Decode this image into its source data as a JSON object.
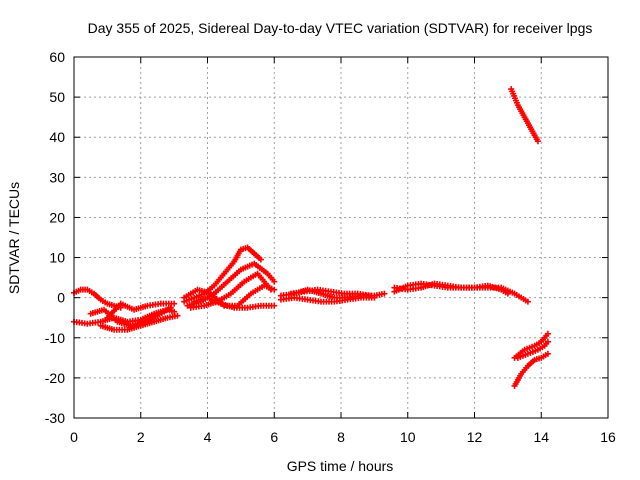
{
  "chart_data": {
    "type": "scatter",
    "title": "Day 355 of 2025, Sidereal Day-to-day VTEC variation (SDTVAR) for receiver lpgs",
    "xlabel": "GPS time / hours",
    "ylabel": "SDTVAR / TECUs",
    "xlim": [
      0,
      16
    ],
    "ylim": [
      -30,
      60
    ],
    "xticks": [
      "0",
      "2",
      "4",
      "6",
      "8",
      "10",
      "12",
      "14",
      "16"
    ],
    "yticks": [
      "-30",
      "-20",
      "-10",
      "0",
      "10",
      "20",
      "30",
      "40",
      "50",
      "60"
    ],
    "grid": true,
    "legend": "none",
    "color": "#ff0000",
    "marker": "plus",
    "series": [
      {
        "x": [
          0.0,
          0.2,
          0.4,
          0.6,
          0.8,
          1.0,
          1.2,
          1.4
        ],
        "y": [
          1.2,
          2.0,
          2.0,
          1.0,
          -0.5,
          -1.5,
          -2.0,
          -2.5
        ]
      },
      {
        "x": [
          0.0,
          0.4,
          0.8,
          1.2,
          1.6,
          2.0,
          2.4,
          2.8,
          3.0
        ],
        "y": [
          -6.0,
          -6.5,
          -6.0,
          -5.0,
          -6.0,
          -5.5,
          -4.0,
          -3.0,
          -3.5
        ]
      },
      {
        "x": [
          0.5,
          0.9,
          1.3,
          1.7,
          2.1,
          2.5,
          2.9
        ],
        "y": [
          -4.0,
          -3.0,
          -6.0,
          -7.0,
          -6.0,
          -4.5,
          -2.5
        ]
      },
      {
        "x": [
          0.8,
          1.2,
          1.6,
          2.0,
          2.4,
          2.8,
          3.1
        ],
        "y": [
          -7.0,
          -8.0,
          -8.0,
          -7.0,
          -6.0,
          -5.0,
          -4.5
        ]
      },
      {
        "x": [
          1.0,
          1.4,
          1.8,
          2.2,
          2.6,
          3.0
        ],
        "y": [
          -5.0,
          -1.5,
          -3.0,
          -2.0,
          -1.5,
          -1.5
        ]
      },
      {
        "x": [
          3.3,
          3.6,
          3.9,
          4.2,
          4.5,
          4.8,
          5.0,
          5.2,
          5.4,
          5.6
        ],
        "y": [
          -1.0,
          0.0,
          1.0,
          3.0,
          6.0,
          9.0,
          12.0,
          12.5,
          11.0,
          9.5
        ]
      },
      {
        "x": [
          3.4,
          3.8,
          4.2,
          4.6,
          5.0,
          5.4,
          5.8,
          6.0
        ],
        "y": [
          -2.0,
          -1.0,
          1.0,
          4.0,
          7.0,
          8.5,
          6.0,
          4.0
        ]
      },
      {
        "x": [
          3.5,
          3.9,
          4.3,
          4.7,
          5.1,
          5.5,
          5.9
        ],
        "y": [
          -2.5,
          -2.0,
          -1.0,
          1.0,
          4.0,
          6.0,
          2.0
        ]
      },
      {
        "x": [
          3.6,
          4.0,
          4.4,
          4.8,
          5.2,
          5.6,
          6.0
        ],
        "y": [
          -1.0,
          0.0,
          -1.5,
          -2.5,
          -2.5,
          -2.0,
          -2.0
        ]
      },
      {
        "x": [
          3.3,
          3.7,
          4.1,
          4.5,
          4.9,
          5.3,
          5.7,
          6.0
        ],
        "y": [
          0.0,
          2.0,
          1.0,
          -2.0,
          -2.0,
          1.0,
          3.0,
          2.0
        ]
      },
      {
        "x": [
          6.2,
          6.6,
          7.0,
          7.4,
          7.8,
          8.2,
          8.6,
          9.0,
          9.3
        ],
        "y": [
          0.5,
          1.0,
          2.0,
          1.0,
          0.0,
          0.0,
          0.5,
          0.5,
          1.0
        ]
      },
      {
        "x": [
          6.2,
          6.6,
          7.0,
          7.4,
          7.8,
          8.2,
          8.6,
          9.0
        ],
        "y": [
          -0.5,
          0.0,
          -0.5,
          -1.0,
          -1.0,
          -0.5,
          0.0,
          0.0
        ]
      },
      {
        "x": [
          6.5,
          6.9,
          7.3,
          7.7,
          8.1,
          8.5,
          8.9
        ],
        "y": [
          1.0,
          1.5,
          2.0,
          1.5,
          1.0,
          1.0,
          0.5
        ]
      },
      {
        "x": [
          9.6,
          10.0,
          10.4,
          10.8,
          11.2,
          11.6,
          12.0,
          12.4,
          12.8,
          13.2,
          13.6
        ],
        "y": [
          1.5,
          3.0,
          3.5,
          3.0,
          2.5,
          2.5,
          2.5,
          2.5,
          2.5,
          1.0,
          -1.0
        ]
      },
      {
        "x": [
          9.6,
          10.0,
          10.4,
          10.8,
          11.2,
          11.6,
          12.0,
          12.4,
          12.8,
          13.0
        ],
        "y": [
          2.5,
          2.0,
          2.5,
          3.5,
          3.0,
          2.5,
          2.5,
          3.0,
          2.0,
          1.0
        ]
      },
      {
        "x": [
          13.1,
          13.3,
          13.5,
          13.7,
          13.9
        ],
        "y": [
          52.0,
          48.0,
          45.0,
          42.0,
          39.0
        ]
      },
      {
        "x": [
          13.2,
          13.4,
          13.6,
          13.8,
          14.0,
          14.2
        ],
        "y": [
          -22.0,
          -19.0,
          -17.0,
          -15.5,
          -15.0,
          -14.0
        ]
      },
      {
        "x": [
          13.2,
          13.5,
          13.8,
          14.0,
          14.2
        ],
        "y": [
          -15.0,
          -13.0,
          -12.0,
          -11.0,
          -9.0
        ]
      },
      {
        "x": [
          13.3,
          13.6,
          13.9,
          14.1,
          14.2
        ],
        "y": [
          -15.0,
          -14.0,
          -13.0,
          -12.0,
          -11.0
        ]
      }
    ]
  }
}
